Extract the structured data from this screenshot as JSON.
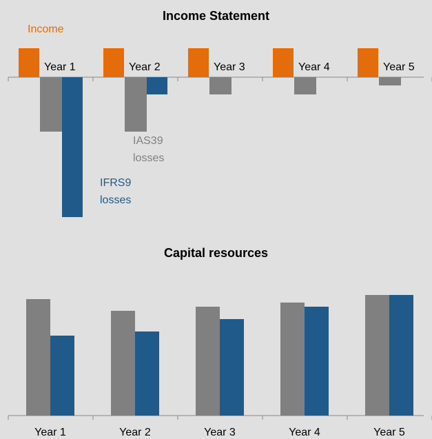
{
  "chart_data": [
    {
      "type": "bar",
      "title": "Income Statement",
      "categories": [
        "Year 1",
        "Year 2",
        "Year 3",
        "Year 4",
        "Year 5"
      ],
      "series": [
        {
          "name": "Income",
          "color": "#e46c0a",
          "values": [
            42,
            42,
            42,
            42,
            42
          ]
        },
        {
          "name": "IAS39 losses",
          "color": "#808080",
          "values": [
            -79,
            -79,
            -25,
            -25,
            -12
          ]
        },
        {
          "name": "IFRS9 losses",
          "color": "#1f5a8b",
          "values": [
            -203,
            -25,
            0,
            0,
            0
          ]
        }
      ]
    },
    {
      "type": "bar",
      "title": "Capital resources",
      "categories": [
        "Year 1",
        "Year 2",
        "Year 3",
        "Year 4",
        "Year 5"
      ],
      "series": [
        {
          "color": "#808080",
          "values": [
            169,
            152,
            158,
            164,
            175
          ]
        },
        {
          "color": "#1f5a8b",
          "values": [
            116,
            122,
            140,
            158,
            175
          ]
        }
      ]
    }
  ]
}
